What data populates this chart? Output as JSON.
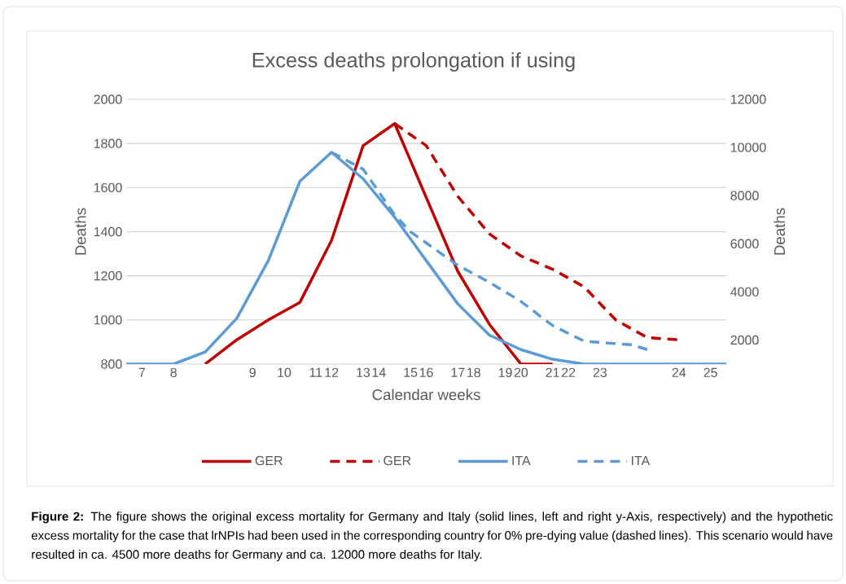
{
  "chart_data": {
    "type": "line",
    "title": "Excess deaths prolongation if using",
    "xlabel": "Calendar weeks",
    "ylabel": "Deaths",
    "y2label": "Deaths",
    "categories": [
      null,
      "7",
      null,
      "8",
      null,
      null,
      null,
      null,
      "9",
      null,
      "10",
      null,
      "11",
      "12",
      null,
      "13",
      "14",
      null,
      "15",
      "16",
      null,
      "17",
      "18",
      null,
      "19",
      "20",
      null,
      "21",
      "22",
      null,
      "23",
      null,
      null,
      null,
      null,
      "24",
      null,
      "25",
      null
    ],
    "ylim": [
      800,
      2000
    ],
    "yticks": [
      800,
      1000,
      1200,
      1400,
      1600,
      1800,
      2000
    ],
    "y2lim": [
      1000,
      12000
    ],
    "y2ticks": [
      2000,
      4000,
      6000,
      8000,
      10000,
      12000
    ],
    "grid": "y",
    "legend": "bottom",
    "series": [
      {
        "name": "GER",
        "color": "#c00000",
        "line_style": "solid",
        "values": [
          null,
          null,
          null,
          null,
          null,
          800,
          null,
          910,
          null,
          1000,
          null,
          1080,
          null,
          1360,
          null,
          1790,
          null,
          1890,
          null,
          null,
          null,
          1220,
          null,
          980,
          null,
          800,
          null,
          800,
          null,
          null,
          null,
          null,
          null,
          null,
          null,
          null,
          null,
          null,
          null
        ]
      },
      {
        "name": "GER",
        "color": "#c00000",
        "line_style": "dashed",
        "values": [
          null,
          null,
          null,
          null,
          null,
          null,
          null,
          null,
          null,
          null,
          null,
          null,
          null,
          null,
          null,
          null,
          null,
          1890,
          null,
          1790,
          null,
          1560,
          null,
          1390,
          null,
          1290,
          null,
          1230,
          null,
          1150,
          null,
          1000,
          null,
          920,
          null,
          910,
          null,
          null,
          null
        ]
      },
      {
        "name": "ITA",
        "color": "#5b9bd5",
        "line_style": "solid",
        "axis": "y2",
        "values": [
          1000,
          null,
          null,
          1000,
          null,
          1500,
          null,
          2900,
          null,
          5300,
          null,
          8600,
          null,
          9800,
          null,
          8700,
          null,
          7100,
          null,
          null,
          null,
          3500,
          null,
          2200,
          null,
          1600,
          null,
          1200,
          null,
          1000,
          null,
          null,
          null,
          null,
          null,
          null,
          null,
          null,
          1000
        ]
      },
      {
        "name": "ITA",
        "color": "#5b9bd5",
        "line_style": "dashed",
        "axis": "y2",
        "values": [
          null,
          null,
          null,
          null,
          null,
          null,
          null,
          null,
          null,
          null,
          null,
          null,
          null,
          9800,
          null,
          9100,
          null,
          7200,
          6500,
          null,
          null,
          5100,
          null,
          4400,
          null,
          3600,
          null,
          2600,
          null,
          1950,
          null,
          null,
          1800,
          1600,
          null,
          null,
          null,
          null,
          null
        ]
      }
    ],
    "annotations": [
      "**Figure 2:** The figure shows the original excess mortality for Germany and Italy (solid lines, left and right y-Axis, respectively) and the hypothetic excess mortality for the case that lrNPIs had been used in the corresponding country for 0% pre-dying value (dashed lines). This scenario would have resulted in ca. 4500 more deaths for Germany and ca. 12000 more deaths for Italy."
    ]
  }
}
